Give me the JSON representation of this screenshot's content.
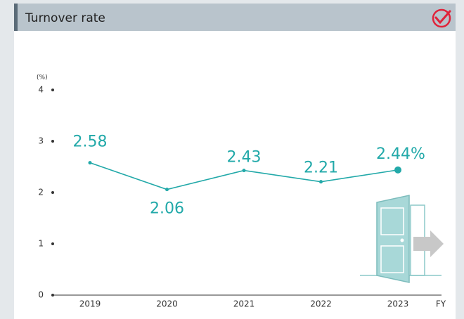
{
  "chart_data": {
    "type": "line",
    "title": "Turnover rate",
    "y_axis_label": "(%)",
    "x_axis_label": "FY",
    "categories": [
      "2019",
      "2020",
      "2021",
      "2022",
      "2023"
    ],
    "values": [
      2.58,
      2.06,
      2.43,
      2.21,
      2.44
    ],
    "value_labels": [
      "2.58",
      "2.06",
      "2.43",
      "2.21",
      "2.44%"
    ],
    "color": "#22a9a9",
    "ylim": [
      0,
      4
    ],
    "yticks": [
      0,
      1,
      2,
      3,
      4
    ]
  }
}
